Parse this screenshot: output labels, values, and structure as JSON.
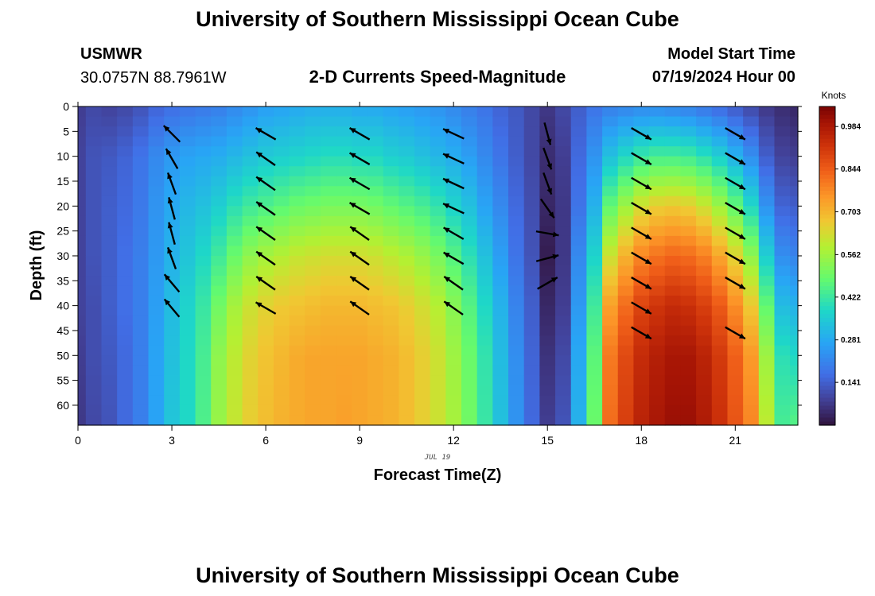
{
  "header": {
    "main_title": "University of Southern Mississippi Ocean Cube",
    "station_id": "USMWR",
    "station_coords": "30.0757N  88.7961W",
    "plot_title": "2-D Currents Speed-Magnitude",
    "model_label": "Model Start Time",
    "model_time": "07/19/2024 Hour 00",
    "footer_title": "University of Southern Mississippi Ocean Cube"
  },
  "chart_data": {
    "type": "heatmap",
    "title": "2-D Currents Speed-Magnitude",
    "xlabel": "Forecast Time(Z)",
    "ylabel": "Depth (ft)",
    "date_label": "JUL 19",
    "x_range": [
      0,
      23
    ],
    "y_range": [
      0,
      64
    ],
    "y_inverted": true,
    "x_ticks": [
      "0",
      "3",
      "6",
      "9",
      "12",
      "15",
      "18",
      "21"
    ],
    "y_ticks": [
      "0",
      "5",
      "10",
      "15",
      "20",
      "25",
      "30",
      "35",
      "40",
      "45",
      "50",
      "55",
      "60"
    ],
    "colorbar": {
      "units": "Knots",
      "min": 0.0,
      "max": 1.05,
      "ticks": [
        "0.141",
        "0.281",
        "0.422",
        "0.562",
        "0.703",
        "0.844",
        "0.984"
      ]
    },
    "hours": [
      0,
      0.5,
      1,
      1.5,
      2,
      2.5,
      3,
      3.5,
      4,
      4.5,
      5,
      5.5,
      6,
      6.5,
      7,
      7.5,
      8,
      8.5,
      9,
      9.5,
      10,
      10.5,
      11,
      11.5,
      12,
      12.5,
      13,
      13.5,
      14,
      14.5,
      15,
      15.5,
      16,
      16.5,
      17,
      17.5,
      18,
      18.5,
      19,
      19.5,
      20,
      20.5,
      21,
      21.5,
      22,
      22.5,
      23
    ],
    "speed_profiles": [
      {
        "z": [
          0,
          10,
          20,
          30,
          40,
          50,
          64
        ],
        "v": [
          0.08,
          0.09,
          0.09,
          0.09,
          0.09,
          0.08,
          0.07
        ]
      },
      {
        "z": [
          0,
          10,
          20,
          30,
          40,
          50,
          64
        ],
        "v": [
          0.1,
          0.12,
          0.12,
          0.12,
          0.11,
          0.11,
          0.1
        ]
      },
      {
        "z": [
          0,
          10,
          20,
          30,
          40,
          50,
          64
        ],
        "v": [
          0.09,
          0.13,
          0.14,
          0.14,
          0.14,
          0.13,
          0.12
        ]
      },
      {
        "z": [
          0,
          10,
          20,
          30,
          40,
          50,
          64
        ],
        "v": [
          0.1,
          0.15,
          0.16,
          0.17,
          0.17,
          0.16,
          0.16
        ]
      },
      {
        "z": [
          0,
          10,
          20,
          30,
          40,
          50,
          64
        ],
        "v": [
          0.12,
          0.18,
          0.19,
          0.2,
          0.2,
          0.2,
          0.2
        ]
      },
      {
        "z": [
          0,
          10,
          20,
          30,
          40,
          50,
          64
        ],
        "v": [
          0.15,
          0.22,
          0.24,
          0.25,
          0.26,
          0.27,
          0.27
        ]
      },
      {
        "z": [
          0,
          10,
          20,
          30,
          40,
          50,
          64
        ],
        "v": [
          0.17,
          0.25,
          0.28,
          0.3,
          0.32,
          0.33,
          0.34
        ]
      },
      {
        "z": [
          0,
          10,
          20,
          30,
          40,
          50,
          64
        ],
        "v": [
          0.18,
          0.27,
          0.31,
          0.34,
          0.37,
          0.38,
          0.38
        ]
      },
      {
        "z": [
          0,
          10,
          20,
          30,
          40,
          50,
          64
        ],
        "v": [
          0.19,
          0.28,
          0.33,
          0.38,
          0.42,
          0.44,
          0.45
        ]
      },
      {
        "z": [
          0,
          10,
          20,
          30,
          40,
          50,
          64
        ],
        "v": [
          0.2,
          0.29,
          0.36,
          0.43,
          0.5,
          0.54,
          0.55
        ]
      },
      {
        "z": [
          0,
          10,
          20,
          30,
          40,
          50,
          64
        ],
        "v": [
          0.22,
          0.31,
          0.4,
          0.49,
          0.57,
          0.6,
          0.61
        ]
      },
      {
        "z": [
          0,
          10,
          20,
          30,
          40,
          50,
          64
        ],
        "v": [
          0.24,
          0.33,
          0.43,
          0.54,
          0.62,
          0.65,
          0.66
        ]
      },
      {
        "z": [
          0,
          10,
          20,
          30,
          40,
          50,
          64
        ],
        "v": [
          0.26,
          0.35,
          0.45,
          0.57,
          0.65,
          0.68,
          0.69
        ]
      },
      {
        "z": [
          0,
          10,
          20,
          30,
          40,
          50,
          64
        ],
        "v": [
          0.27,
          0.36,
          0.47,
          0.59,
          0.67,
          0.7,
          0.71
        ]
      },
      {
        "z": [
          0,
          10,
          20,
          30,
          40,
          50,
          64
        ],
        "v": [
          0.28,
          0.37,
          0.49,
          0.61,
          0.68,
          0.72,
          0.72
        ]
      },
      {
        "z": [
          0,
          10,
          20,
          30,
          40,
          50,
          64
        ],
        "v": [
          0.29,
          0.38,
          0.5,
          0.62,
          0.69,
          0.73,
          0.73
        ]
      },
      {
        "z": [
          0,
          10,
          20,
          30,
          40,
          50,
          64
        ],
        "v": [
          0.29,
          0.39,
          0.51,
          0.63,
          0.7,
          0.73,
          0.73
        ]
      },
      {
        "z": [
          0,
          10,
          20,
          30,
          40,
          50,
          64
        ],
        "v": [
          0.29,
          0.39,
          0.51,
          0.63,
          0.7,
          0.73,
          0.74
        ]
      },
      {
        "z": [
          0,
          10,
          20,
          30,
          40,
          50,
          64
        ],
        "v": [
          0.28,
          0.38,
          0.51,
          0.63,
          0.7,
          0.73,
          0.73
        ]
      },
      {
        "z": [
          0,
          10,
          20,
          30,
          40,
          50,
          64
        ],
        "v": [
          0.28,
          0.38,
          0.5,
          0.62,
          0.69,
          0.72,
          0.72
        ]
      },
      {
        "z": [
          0,
          10,
          20,
          30,
          40,
          50,
          64
        ],
        "v": [
          0.27,
          0.36,
          0.48,
          0.6,
          0.68,
          0.71,
          0.71
        ]
      },
      {
        "z": [
          0,
          10,
          20,
          30,
          40,
          50,
          64
        ],
        "v": [
          0.26,
          0.35,
          0.46,
          0.58,
          0.66,
          0.69,
          0.69
        ]
      },
      {
        "z": [
          0,
          10,
          20,
          30,
          40,
          50,
          64
        ],
        "v": [
          0.25,
          0.33,
          0.44,
          0.55,
          0.63,
          0.66,
          0.66
        ]
      },
      {
        "z": [
          0,
          10,
          20,
          30,
          40,
          50,
          64
        ],
        "v": [
          0.24,
          0.31,
          0.41,
          0.51,
          0.59,
          0.62,
          0.62
        ]
      },
      {
        "z": [
          0,
          10,
          20,
          30,
          40,
          50,
          64
        ],
        "v": [
          0.22,
          0.29,
          0.37,
          0.46,
          0.53,
          0.56,
          0.57
        ]
      },
      {
        "z": [
          0,
          10,
          20,
          30,
          40,
          50,
          64
        ],
        "v": [
          0.2,
          0.26,
          0.33,
          0.4,
          0.46,
          0.49,
          0.5
        ]
      },
      {
        "z": [
          0,
          10,
          20,
          30,
          40,
          50,
          64
        ],
        "v": [
          0.18,
          0.22,
          0.27,
          0.33,
          0.38,
          0.41,
          0.42
        ]
      },
      {
        "z": [
          0,
          10,
          20,
          30,
          40,
          50,
          64
        ],
        "v": [
          0.15,
          0.18,
          0.22,
          0.26,
          0.3,
          0.32,
          0.33
        ]
      },
      {
        "z": [
          0,
          10,
          20,
          30,
          40,
          50,
          64
        ],
        "v": [
          0.13,
          0.14,
          0.16,
          0.18,
          0.21,
          0.23,
          0.24
        ]
      },
      {
        "z": [
          0,
          10,
          20,
          30,
          40,
          50,
          64
        ],
        "v": [
          0.1,
          0.1,
          0.11,
          0.12,
          0.14,
          0.15,
          0.16
        ]
      },
      {
        "z": [
          0,
          10,
          20,
          30,
          40,
          50,
          64
        ],
        "v": [
          0.07,
          0.05,
          0.04,
          0.02,
          0.04,
          0.06,
          0.08
        ]
      },
      {
        "z": [
          0,
          10,
          20,
          30,
          40,
          50,
          64
        ],
        "v": [
          0.1,
          0.08,
          0.07,
          0.07,
          0.08,
          0.1,
          0.12
        ]
      },
      {
        "z": [
          0,
          10,
          20,
          30,
          40,
          50,
          64
        ],
        "v": [
          0.14,
          0.16,
          0.18,
          0.22,
          0.25,
          0.28,
          0.3
        ]
      },
      {
        "z": [
          0,
          10,
          20,
          30,
          40,
          50,
          64
        ],
        "v": [
          0.18,
          0.24,
          0.3,
          0.37,
          0.43,
          0.47,
          0.49
        ]
      },
      {
        "z": [
          0,
          10,
          20,
          30,
          40,
          50,
          64
        ],
        "v": [
          0.2,
          0.33,
          0.48,
          0.62,
          0.74,
          0.8,
          0.82
        ]
      },
      {
        "z": [
          0,
          10,
          20,
          30,
          40,
          50,
          64
        ],
        "v": [
          0.21,
          0.38,
          0.56,
          0.71,
          0.82,
          0.88,
          0.9
        ]
      },
      {
        "z": [
          0,
          10,
          20,
          30,
          40,
          50,
          64
        ],
        "v": [
          0.22,
          0.42,
          0.63,
          0.78,
          0.89,
          0.94,
          0.96
        ]
      },
      {
        "z": [
          0,
          10,
          20,
          30,
          40,
          50,
          64
        ],
        "v": [
          0.22,
          0.44,
          0.66,
          0.81,
          0.92,
          0.97,
          0.99
        ]
      },
      {
        "z": [
          0,
          10,
          20,
          30,
          40,
          50,
          64
        ],
        "v": [
          0.21,
          0.44,
          0.67,
          0.83,
          0.94,
          0.99,
          1.01
        ]
      },
      {
        "z": [
          0,
          10,
          20,
          30,
          40,
          50,
          64
        ],
        "v": [
          0.2,
          0.43,
          0.66,
          0.82,
          0.93,
          0.99,
          1.01
        ]
      },
      {
        "z": [
          0,
          10,
          20,
          30,
          40,
          50,
          64
        ],
        "v": [
          0.18,
          0.4,
          0.62,
          0.79,
          0.9,
          0.96,
          0.98
        ]
      },
      {
        "z": [
          0,
          10,
          20,
          30,
          40,
          50,
          64
        ],
        "v": [
          0.16,
          0.36,
          0.56,
          0.73,
          0.85,
          0.91,
          0.93
        ]
      },
      {
        "z": [
          0,
          10,
          20,
          30,
          40,
          50,
          64
        ],
        "v": [
          0.13,
          0.3,
          0.48,
          0.65,
          0.77,
          0.84,
          0.86
        ]
      },
      {
        "z": [
          0,
          10,
          20,
          30,
          40,
          50,
          64
        ],
        "v": [
          0.1,
          0.23,
          0.38,
          0.54,
          0.67,
          0.75,
          0.78
        ]
      },
      {
        "z": [
          0,
          10,
          20,
          30,
          40,
          50,
          64
        ],
        "v": [
          0.07,
          0.14,
          0.24,
          0.36,
          0.48,
          0.56,
          0.6
        ]
      },
      {
        "z": [
          0,
          10,
          20,
          30,
          40,
          50,
          64
        ],
        "v": [
          0.05,
          0.09,
          0.15,
          0.23,
          0.32,
          0.4,
          0.44
        ]
      },
      {
        "z": [
          0,
          10,
          20,
          30,
          40,
          50,
          64
        ],
        "v": [
          0.04,
          0.08,
          0.14,
          0.21,
          0.3,
          0.38,
          0.46
        ]
      }
    ],
    "vector_times": [
      3,
      6,
      9,
      12,
      15,
      18,
      21
    ],
    "vector_depths": [
      5,
      10,
      15,
      20,
      25,
      30,
      35,
      40,
      45
    ],
    "vector_headings_deg": [
      [
        315,
        330,
        340,
        345,
        345,
        340,
        320,
        320,
        null
      ],
      [
        300,
        305,
        305,
        305,
        305,
        305,
        305,
        300,
        null
      ],
      [
        300,
        300,
        300,
        300,
        305,
        305,
        305,
        305,
        null
      ],
      [
        295,
        295,
        295,
        295,
        300,
        300,
        305,
        305,
        null
      ],
      [
        165,
        160,
        160,
        145,
        100,
        75,
        60,
        null,
        null
      ],
      [
        120,
        120,
        120,
        120,
        120,
        120,
        120,
        120,
        120
      ],
      [
        120,
        120,
        120,
        120,
        120,
        120,
        120,
        null,
        120
      ]
    ]
  }
}
